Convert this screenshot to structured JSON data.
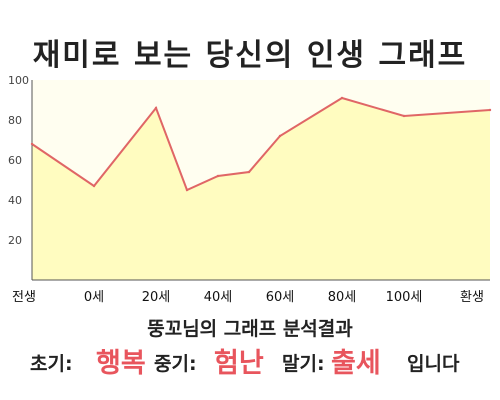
{
  "title": "재미로 보는 당신의 인생 그래프",
  "chart_data": {
    "type": "area",
    "x_labels": [
      "전생",
      "0세",
      "20세",
      "40세",
      "60세",
      "80세",
      "100세",
      "환생"
    ],
    "y_ticks": [
      "100",
      "80",
      "60",
      "40",
      "20"
    ],
    "ylim": [
      0,
      100
    ],
    "points": [
      {
        "x": "전생",
        "y": 68
      },
      {
        "x": "0세",
        "y": 47
      },
      {
        "x": "20세",
        "y": 86
      },
      {
        "x": "30세",
        "y": 45
      },
      {
        "x": "40세",
        "y": 52
      },
      {
        "x": "50세",
        "y": 54
      },
      {
        "x": "60세",
        "y": 72
      },
      {
        "x": "80세",
        "y": 91
      },
      {
        "x": "100세",
        "y": 82
      },
      {
        "x": "환생",
        "y": 85
      }
    ],
    "grid": false,
    "line_color": "#e06666",
    "fill_color": "#fffcc0"
  },
  "analysis": {
    "subtitle": "뚱꼬님의 그래프 분석결과",
    "early_label": "초기:",
    "early_value": "행복",
    "middle_label": "중기:",
    "middle_value": "험난",
    "late_label": "말기:",
    "late_value": "출세",
    "ending": "입니다",
    "highlight_color": "#e8555d"
  }
}
